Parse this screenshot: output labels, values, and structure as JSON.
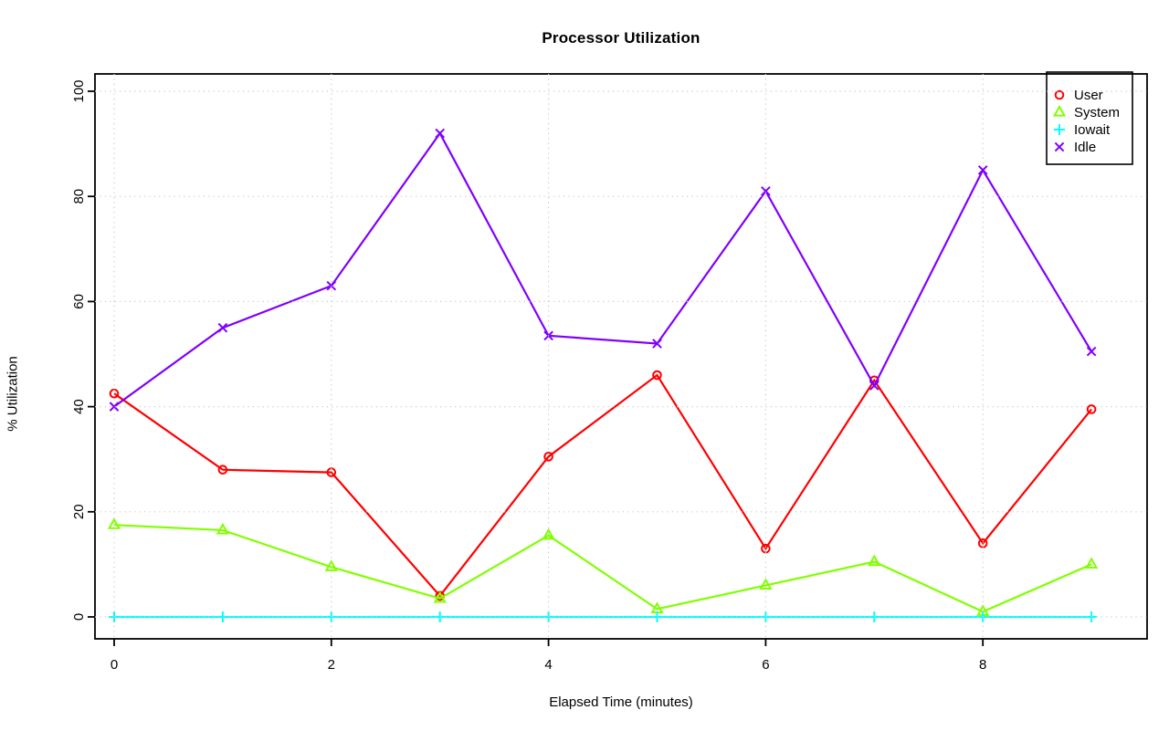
{
  "chart_data": {
    "type": "line",
    "title": "Processor Utilization",
    "xlabel": "Elapsed Time (minutes)",
    "ylabel": "% Utilization",
    "x": [
      0,
      1,
      2,
      3,
      4,
      5,
      6,
      7,
      8,
      9
    ],
    "series": [
      {
        "name": "User",
        "color": "#ff0000",
        "marker": "circle",
        "values": [
          42.5,
          28,
          27.5,
          4,
          30.5,
          46,
          13,
          45,
          14,
          39.5
        ]
      },
      {
        "name": "System",
        "color": "#80ff00",
        "marker": "triangle",
        "values": [
          17.5,
          16.5,
          9.5,
          3.5,
          15.5,
          1.5,
          6,
          10.5,
          1,
          10
        ]
      },
      {
        "name": "Iowait",
        "color": "#00ffff",
        "marker": "plus",
        "values": [
          0,
          0,
          0,
          0,
          0,
          0,
          0,
          0,
          0,
          0
        ]
      },
      {
        "name": "Idle",
        "color": "#8000ff",
        "marker": "x",
        "values": [
          40,
          55,
          63,
          92,
          53.5,
          52,
          81,
          44,
          85,
          50.5
        ]
      }
    ],
    "x_ticks": [
      0,
      2,
      4,
      6,
      8
    ],
    "y_ticks": [
      0,
      20,
      40,
      60,
      80,
      100
    ],
    "xlim": [
      -0.4,
      9.5
    ],
    "ylim": [
      -4,
      104
    ],
    "grid": true,
    "grid_style": "dotted",
    "legend_position": "top-right",
    "legend_labels": [
      "User",
      "System",
      "Iowait",
      "Idle"
    ]
  },
  "style": {
    "grid_color": "#c9c9c9",
    "axis_color": "#000000",
    "text_color": "#000000",
    "background": "#ffffff"
  }
}
